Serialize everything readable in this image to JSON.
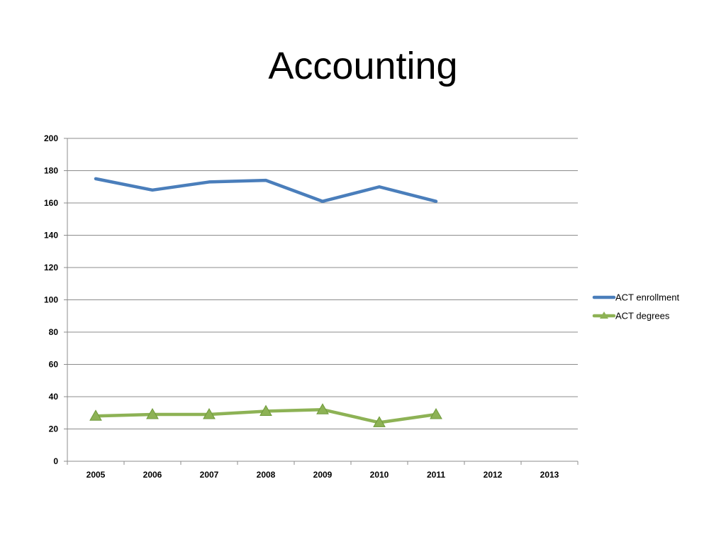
{
  "slide": {
    "title": "Accounting"
  },
  "chart_data": {
    "type": "line",
    "title": "",
    "xlabel": "",
    "ylabel": "",
    "categories": [
      "2005",
      "2006",
      "2007",
      "2008",
      "2009",
      "2010",
      "2011",
      "2012",
      "2013"
    ],
    "ylim": [
      0,
      200
    ],
    "yticks": [
      0,
      20,
      40,
      60,
      80,
      100,
      120,
      140,
      160,
      180,
      200
    ],
    "grid": "horizontal",
    "legend_position": "right",
    "series": [
      {
        "name": "ACT enrollment",
        "color": "#4a7ebb",
        "marker": "none",
        "values": [
          175,
          168,
          173,
          174,
          161,
          170,
          161,
          null,
          null
        ]
      },
      {
        "name": "ACT degrees",
        "color": "#8db255",
        "marker": "triangle",
        "values": [
          28,
          29,
          29,
          31,
          32,
          24,
          29,
          null,
          null
        ]
      }
    ]
  }
}
